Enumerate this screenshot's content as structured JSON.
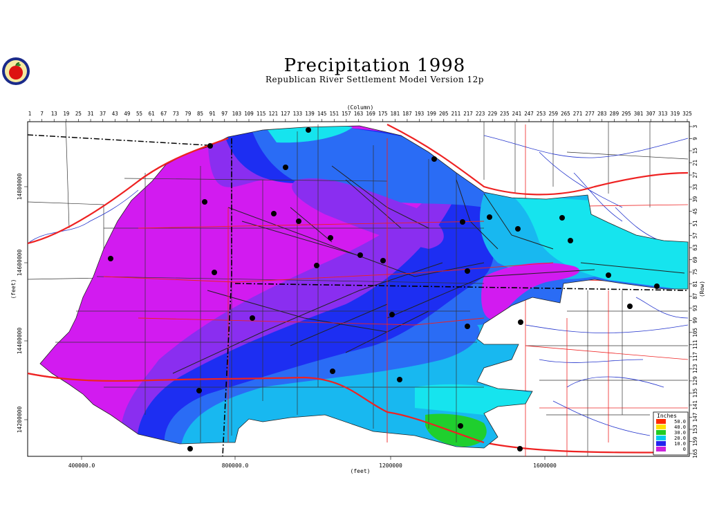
{
  "title": "Precipitation 1998",
  "subtitle": "Republican River Settlement Model Version 12p",
  "axes": {
    "top_label": "(Column)",
    "bottom_label": "(feet)",
    "left_label": "(feet)",
    "right_label": "(Row)",
    "column_ticks": [
      "1",
      "7",
      "13",
      "19",
      "25",
      "31",
      "37",
      "43",
      "49",
      "55",
      "61",
      "67",
      "73",
      "79",
      "85",
      "91",
      "97",
      "103",
      "109",
      "115",
      "121",
      "127",
      "133",
      "139",
      "145",
      "151",
      "157",
      "163",
      "169",
      "175",
      "181",
      "187",
      "193",
      "199",
      "205",
      "211",
      "217",
      "223",
      "229",
      "235",
      "241",
      "247",
      "253",
      "259",
      "265",
      "271",
      "277",
      "283",
      "289",
      "295",
      "301",
      "307",
      "313",
      "319",
      "325"
    ],
    "row_ticks": [
      "3",
      "9",
      "15",
      "21",
      "27",
      "33",
      "39",
      "45",
      "51",
      "57",
      "63",
      "69",
      "75",
      "81",
      "87",
      "93",
      "99",
      "105",
      "111",
      "117",
      "123",
      "129",
      "135",
      "141",
      "147",
      "153",
      "159",
      "165"
    ],
    "x_ticks": [
      "400000.0",
      "800000.0",
      "1200000",
      "1600000"
    ],
    "y_ticks": [
      "14800000",
      "14600000",
      "14400000",
      "14200000"
    ]
  },
  "legend": {
    "title": "Inches",
    "items": [
      {
        "label": "50.0",
        "color": "#ff2a00"
      },
      {
        "label": "40.0",
        "color": "#ffe000"
      },
      {
        "label": "30.0",
        "color": "#22cc22"
      },
      {
        "label": "20.0",
        "color": "#00ccee"
      },
      {
        "label": "10.0",
        "color": "#2222ee"
      },
      {
        "label": "0",
        "color": "#cc22dd"
      }
    ]
  },
  "colors": {
    "background": "#ffffff",
    "magenta": "#d21bf0",
    "purple": "#8a2ef0",
    "blue": "#1d2ef2",
    "mid_blue": "#2a6cf5",
    "light_blue": "#18b8f0",
    "cyan": "#16e4ee",
    "green": "#1fcf2e",
    "county_lines": "#222222",
    "roads": "#ff0000",
    "rivers": "#0000cc",
    "stations": "#000000"
  },
  "logo": {
    "icon": "apple-logo-icon"
  }
}
